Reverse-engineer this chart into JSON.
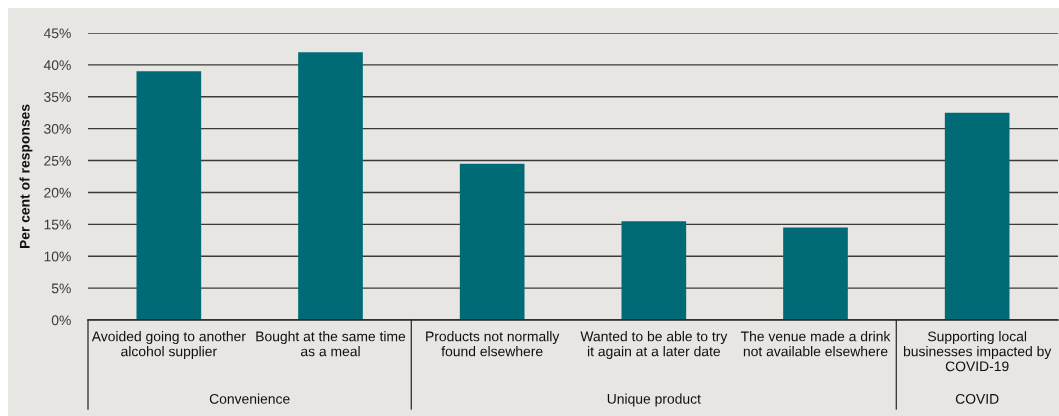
{
  "chart_data": {
    "type": "bar",
    "ylabel": "Per cent of responses",
    "categories": [
      "Avoided going to another\nalcohol supplier",
      "Bought at the same time\nas a meal",
      "Products not normally\nfound elsewhere",
      "Wanted to be able to try\nit again at a later date",
      "The venue made a drink\nnot available elsewhere",
      "Supporting local\nbusinesses impacted by\nCOVID-19"
    ],
    "values": [
      39,
      42,
      24.5,
      15.5,
      14.5,
      32.5
    ],
    "color": "#006b77",
    "ylim": [
      0,
      45
    ],
    "yticks": [
      {
        "value": 0,
        "label": "0%"
      },
      {
        "value": 5,
        "label": "5%"
      },
      {
        "value": 10,
        "label": "10%"
      },
      {
        "value": 15,
        "label": "15%"
      },
      {
        "value": 20,
        "label": "20%"
      },
      {
        "value": 25,
        "label": "25%"
      },
      {
        "value": 30,
        "label": "30%"
      },
      {
        "value": 35,
        "label": "35%"
      },
      {
        "value": 40,
        "label": "40%"
      },
      {
        "value": 45,
        "label": "45%"
      }
    ],
    "grid": "y",
    "annotations": [
      "Convenience",
      "Unique product",
      "COVID"
    ]
  }
}
